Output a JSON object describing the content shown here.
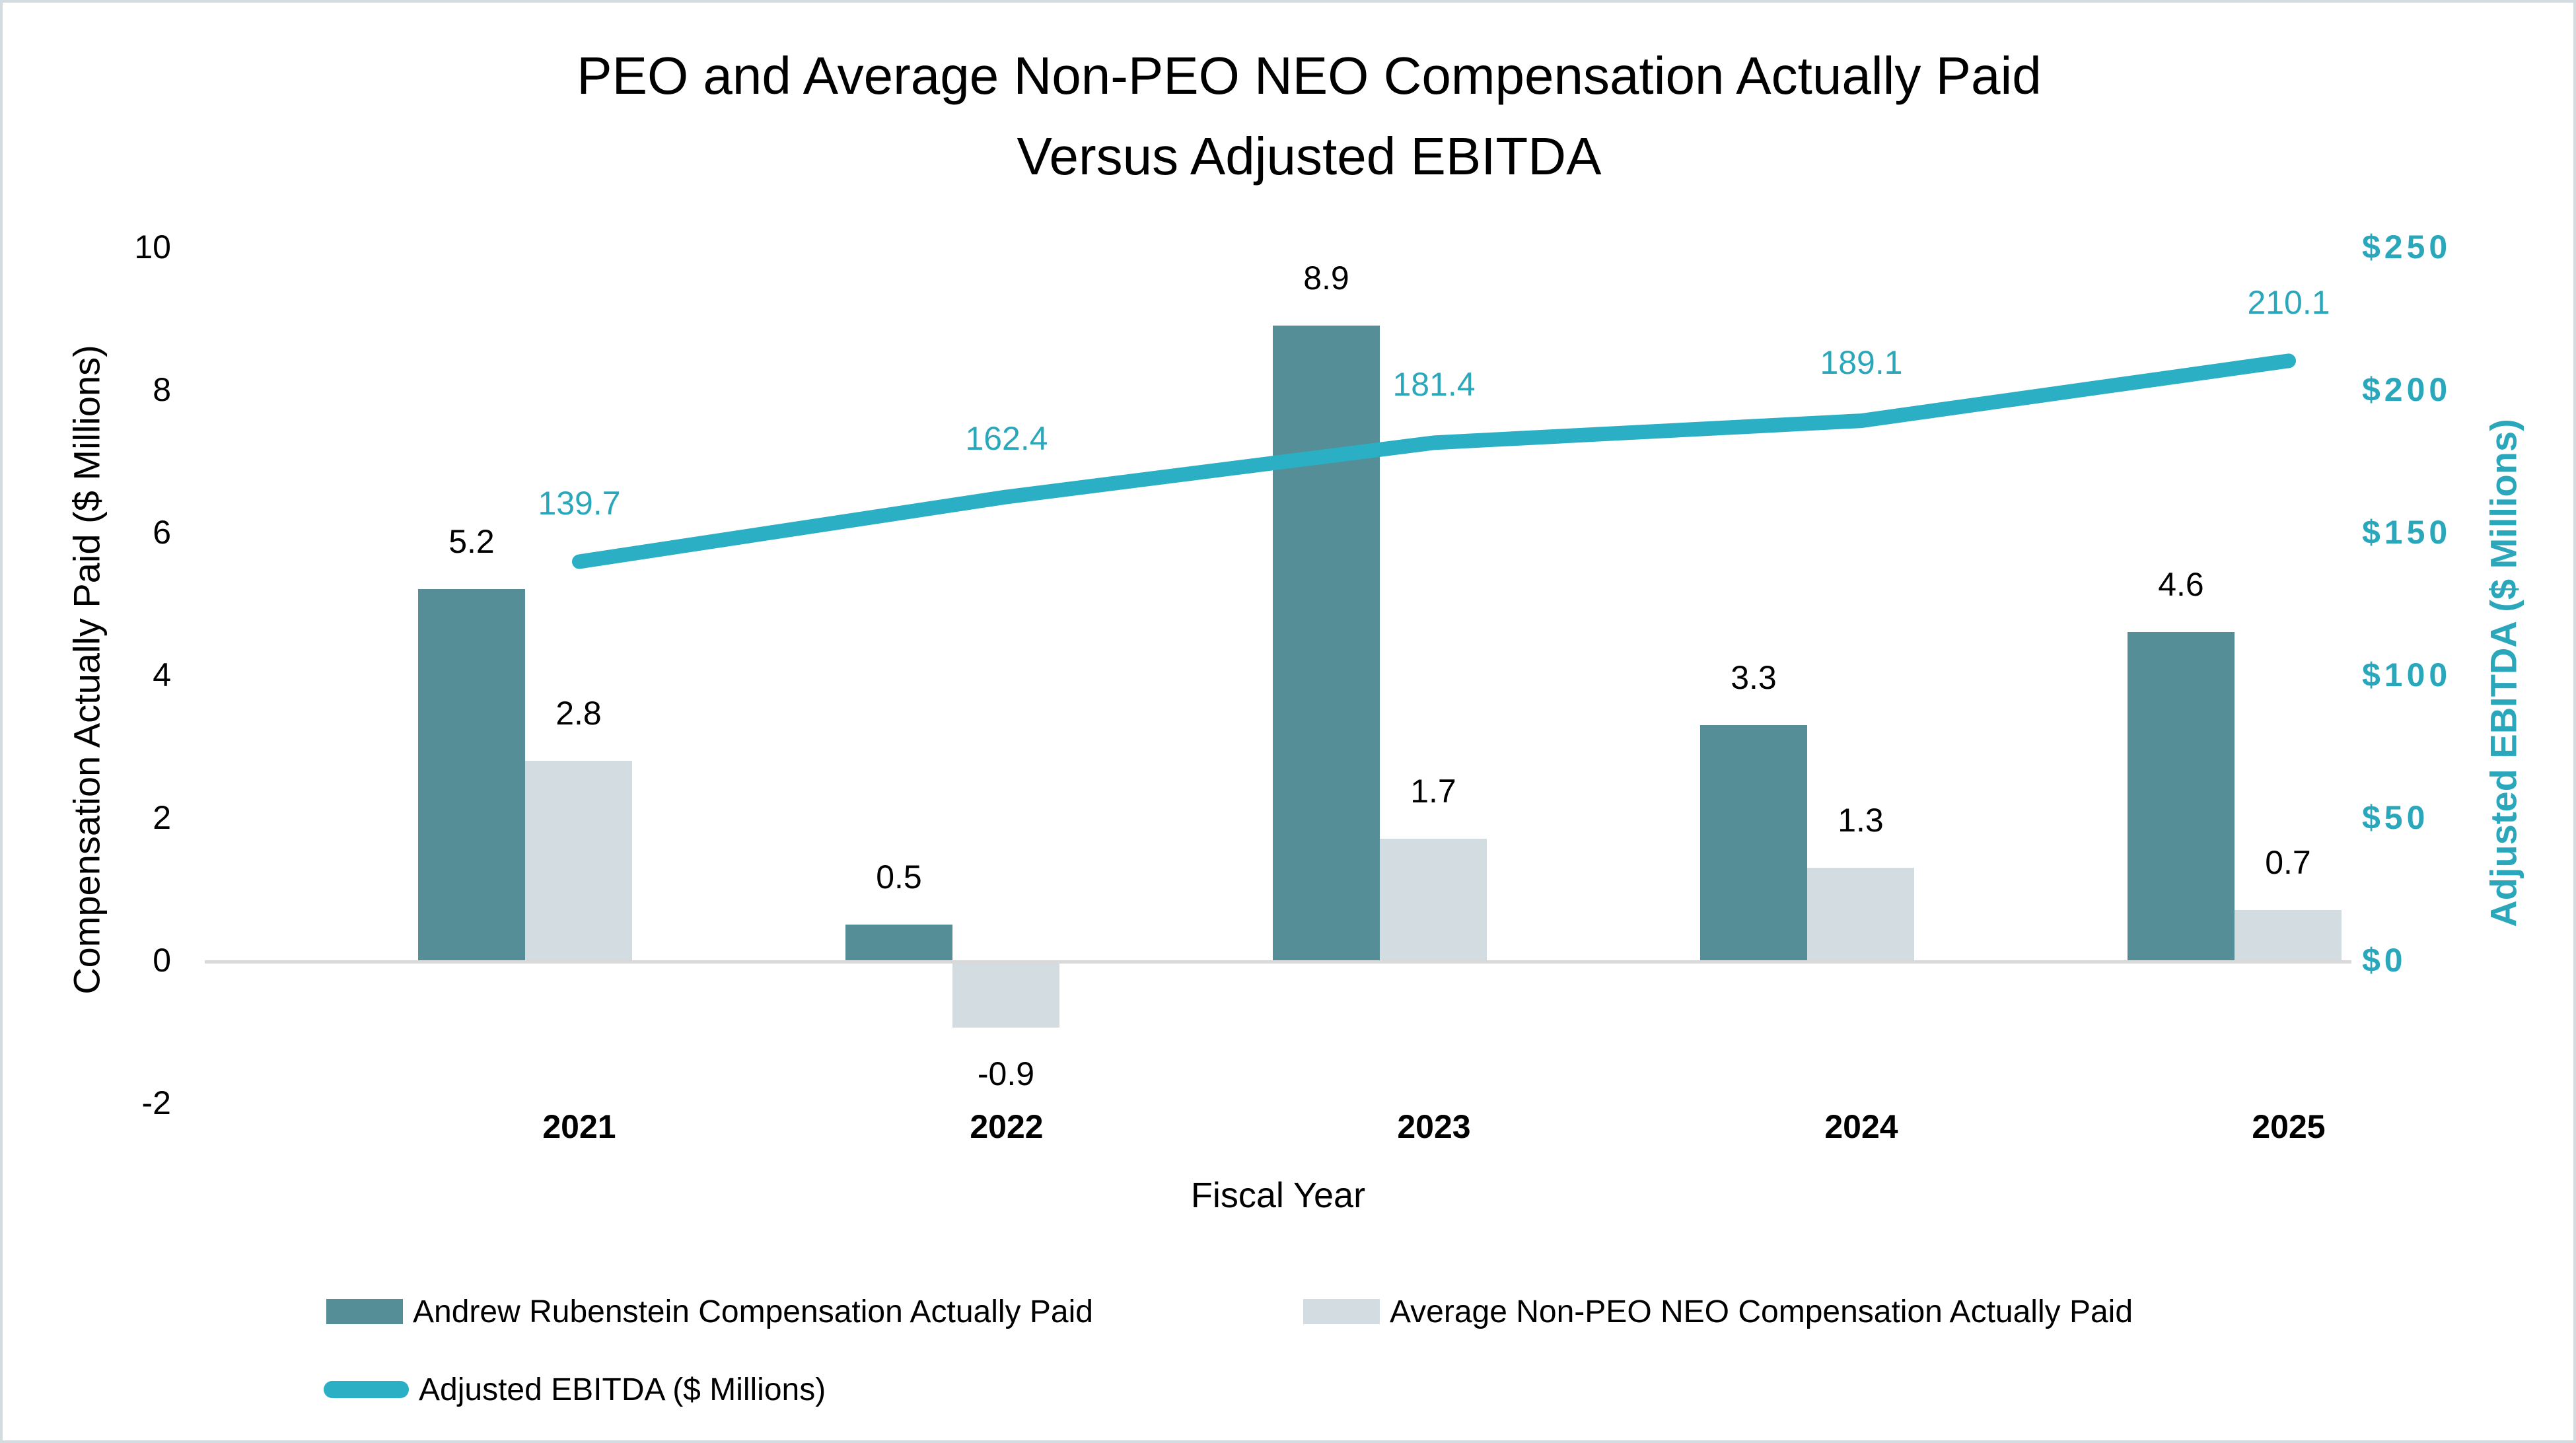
{
  "title": {
    "line1": "PEO and Average Non-PEO NEO Compensation Actually Paid",
    "line2": "Versus Adjusted EBITDA"
  },
  "axes": {
    "left": {
      "title": "Compensation Actually Paid ($ Millions)",
      "ticks": [
        {
          "label": "10",
          "value": 10
        },
        {
          "label": "8",
          "value": 8
        },
        {
          "label": "6",
          "value": 6
        },
        {
          "label": "4",
          "value": 4
        },
        {
          "label": "2",
          "value": 2
        },
        {
          "label": "0",
          "value": 0
        },
        {
          "label": "-2",
          "value": -2
        }
      ]
    },
    "right": {
      "title": "Adjusted EBITDA ($ Millions)",
      "ticks": [
        {
          "label": "$250",
          "value": 250
        },
        {
          "label": "$200",
          "value": 200
        },
        {
          "label": "$150",
          "value": 150
        },
        {
          "label": "$100",
          "value": 100
        },
        {
          "label": "$50",
          "value": 50
        },
        {
          "label": "$0",
          "value": 0
        }
      ]
    },
    "x": {
      "title": "Fiscal Year"
    }
  },
  "chart_data": {
    "type": "combo",
    "categories": [
      "2021",
      "2022",
      "2023",
      "2024",
      "2025"
    ],
    "series": [
      {
        "name": "Andrew Rubenstein Compensation Actually Paid",
        "type": "bar",
        "axis": "left",
        "color": "#568E98",
        "values": [
          5.2,
          0.5,
          8.9,
          3.3,
          4.6
        ]
      },
      {
        "name": "Average Non-PEO NEO Compensation Actually Paid",
        "type": "bar",
        "axis": "left",
        "color": "#D3DDE1",
        "values": [
          2.8,
          -0.9,
          1.7,
          1.3,
          0.7
        ]
      },
      {
        "name": "Adjusted EBITDA ($ Millions)",
        "type": "line",
        "axis": "right",
        "color": "#2AAFC4",
        "values": [
          139.7,
          162.4,
          181.4,
          189.1,
          210.1
        ]
      }
    ],
    "left_axis_range": [
      -2,
      10
    ],
    "right_axis_range": [
      0,
      250
    ],
    "grid": "zero-line-only",
    "legend_position": "bottom-left",
    "xlabel": "Fiscal Year",
    "ylabel_left": "Compensation Actually Paid ($ Millions)",
    "ylabel_right": "Adjusted EBITDA ($ Millions)"
  },
  "colors": {
    "teal_text": "#2BA7BC",
    "zero_line": "#D9D9D9",
    "text": "#000000",
    "canvas_border": "#D2DCE1",
    "background": "#FFFFFF"
  }
}
